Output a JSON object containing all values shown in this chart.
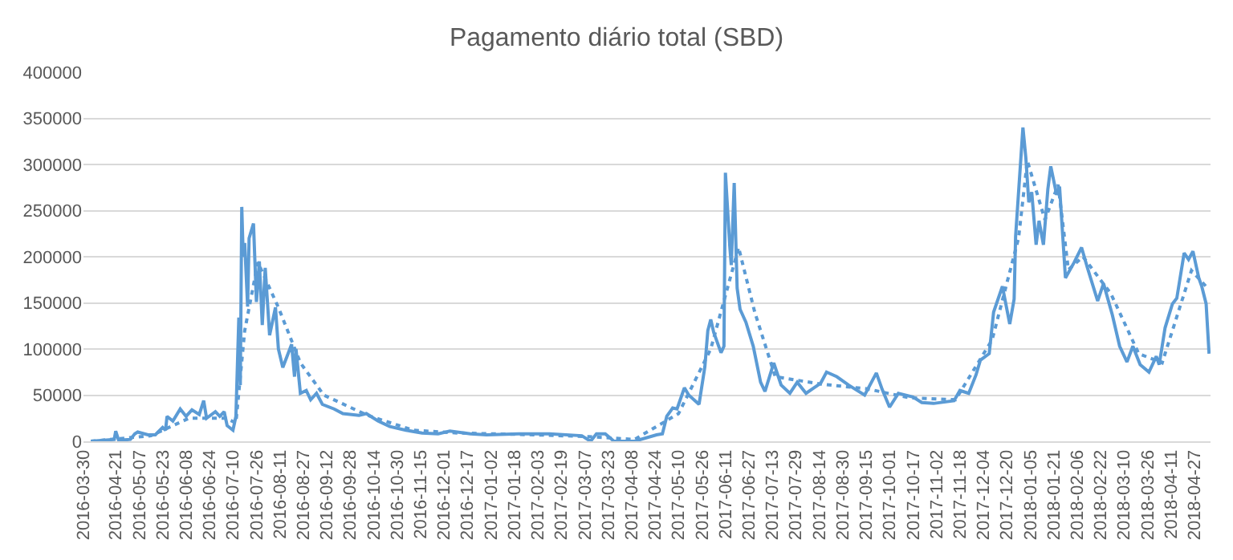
{
  "chart_data": {
    "type": "line",
    "title": "Pagamento diário total (SBD)",
    "series": [
      {
        "color": "#5b9bd5",
        "line_style": "solid",
        "x": [
          "2016-04-04",
          "2016-04-20",
          "2016-04-21",
          "2016-04-23",
          "2016-05-01",
          "2016-05-04",
          "2016-05-06",
          "2016-05-13",
          "2016-05-18",
          "2016-05-23",
          "2016-05-25",
          "2016-05-26",
          "2016-05-30",
          "2016-06-04",
          "2016-06-08",
          "2016-06-12",
          "2016-06-17",
          "2016-06-20",
          "2016-06-22",
          "2016-06-28",
          "2016-07-01",
          "2016-07-04",
          "2016-07-06",
          "2016-07-10",
          "2016-07-12",
          "2016-07-14",
          "2016-07-15",
          "2016-07-16",
          "2016-07-17",
          "2016-07-18",
          "2016-07-20",
          "2016-07-21",
          "2016-07-24",
          "2016-07-26",
          "2016-07-28",
          "2016-07-30",
          "2016-08-01",
          "2016-08-04",
          "2016-08-08",
          "2016-08-10",
          "2016-08-13",
          "2016-08-19",
          "2016-08-21",
          "2016-08-22",
          "2016-08-25",
          "2016-08-29",
          "2016-09-01",
          "2016-09-05",
          "2016-09-09",
          "2016-09-17",
          "2016-09-23",
          "2016-10-04",
          "2016-10-09",
          "2016-10-17",
          "2016-10-25",
          "2016-11-05",
          "2016-11-16",
          "2016-11-27",
          "2016-12-05",
          "2016-12-19",
          "2016-12-30",
          "2017-01-21",
          "2017-02-11",
          "2017-03-05",
          "2017-03-11",
          "2017-03-15",
          "2017-03-21",
          "2017-03-27",
          "2017-04-10",
          "2017-04-25",
          "2017-04-29",
          "2017-05-02",
          "2017-05-06",
          "2017-05-09",
          "2017-05-14",
          "2017-05-17",
          "2017-05-24",
          "2017-05-28",
          "2017-05-30",
          "2017-06-01",
          "2017-06-03",
          "2017-06-08",
          "2017-06-10",
          "2017-06-11",
          "2017-06-14",
          "2017-06-15",
          "2017-06-17",
          "2017-06-19",
          "2017-06-21",
          "2017-06-25",
          "2017-06-30",
          "2017-07-05",
          "2017-07-08",
          "2017-07-14",
          "2017-07-19",
          "2017-07-25",
          "2017-07-30",
          "2017-08-05",
          "2017-08-15",
          "2017-08-19",
          "2017-08-26",
          "2017-09-03",
          "2017-09-08",
          "2017-09-14",
          "2017-09-22",
          "2017-09-26",
          "2017-10-01",
          "2017-10-07",
          "2017-10-17",
          "2017-10-23",
          "2017-10-31",
          "2017-11-14",
          "2017-11-18",
          "2017-11-24",
          "2017-11-29",
          "2017-12-02",
          "2017-12-08",
          "2017-12-11",
          "2017-12-17",
          "2017-12-22",
          "2017-12-25",
          "2017-12-26",
          "2017-12-31",
          "2018-01-02",
          "2018-01-04",
          "2018-01-06",
          "2018-01-09",
          "2018-01-11",
          "2018-01-14",
          "2018-01-17",
          "2018-01-19",
          "2018-01-23",
          "2018-01-25",
          "2018-01-29",
          "2018-02-04",
          "2018-02-09",
          "2018-02-13",
          "2018-02-20",
          "2018-02-24",
          "2018-03-02",
          "2018-03-07",
          "2018-03-12",
          "2018-03-16",
          "2018-03-21",
          "2018-03-27",
          "2018-04-01",
          "2018-04-03",
          "2018-04-07",
          "2018-04-12",
          "2018-04-15",
          "2018-04-20",
          "2018-04-23",
          "2018-04-26",
          "2018-04-30",
          "2018-05-02",
          "2018-05-05",
          "2018-05-07"
        ],
        "values": [
          0,
          2000,
          11000,
          1000,
          2000,
          8000,
          10000,
          7000,
          7000,
          15000,
          12000,
          27000,
          22000,
          35000,
          27000,
          34000,
          29000,
          44000,
          25000,
          32000,
          27000,
          32000,
          17000,
          12000,
          27000,
          134000,
          61000,
          254000,
          200000,
          215000,
          146000,
          220000,
          236000,
          151000,
          195000,
          126000,
          188000,
          115000,
          145000,
          100000,
          80000,
          105000,
          70000,
          100000,
          52000,
          55000,
          45000,
          52000,
          40000,
          35000,
          30000,
          28000,
          30000,
          22000,
          16000,
          12000,
          9000,
          8000,
          11000,
          8000,
          7000,
          8000,
          8000,
          6000,
          0,
          8000,
          8000,
          0,
          0,
          7000,
          8000,
          27000,
          36000,
          35000,
          58000,
          50000,
          40000,
          81000,
          120000,
          132000,
          118000,
          96000,
          103000,
          291000,
          211000,
          191000,
          280000,
          166000,
          143000,
          129000,
          103000,
          64000,
          54000,
          85000,
          61000,
          52000,
          64000,
          52000,
          63000,
          75000,
          70000,
          61000,
          56000,
          50000,
          74000,
          56000,
          37000,
          52000,
          48000,
          42000,
          41000,
          44000,
          55000,
          52000,
          72000,
          88000,
          95000,
          140000,
          168000,
          127000,
          154000,
          222000,
          340000,
          307000,
          259000,
          270000,
          213000,
          239000,
          213000,
          273000,
          298000,
          267000,
          276000,
          177000,
          194000,
          210000,
          188000,
          152000,
          171000,
          137000,
          103000,
          86000,
          103000,
          83000,
          75000,
          92000,
          83000,
          123000,
          149000,
          155000,
          204000,
          197000,
          206000,
          177000,
          168000,
          149000,
          95000
        ]
      },
      {
        "color": "#5b9bd5",
        "line_style": "dotted",
        "x": [
          "2016-04-04",
          "2016-05-15",
          "2016-06-10",
          "2016-07-05",
          "2016-07-12",
          "2016-07-18",
          "2016-07-27",
          "2016-08-10",
          "2016-08-25",
          "2016-09-10",
          "2016-10-10",
          "2016-11-10",
          "2016-12-10",
          "2017-02-01",
          "2017-03-10",
          "2017-04-10",
          "2017-05-10",
          "2017-06-01",
          "2017-06-20",
          "2017-07-01",
          "2017-07-15",
          "2017-08-15",
          "2017-09-15",
          "2017-10-15",
          "2017-11-15",
          "2017-12-10",
          "2017-12-28",
          "2018-01-03",
          "2018-01-15",
          "2018-01-24",
          "2018-01-31",
          "2018-02-10",
          "2018-03-01",
          "2018-03-20",
          "2018-04-05",
          "2018-04-25",
          "2018-05-06"
        ],
        "values": [
          0,
          6000,
          25000,
          25000,
          20000,
          120000,
          194000,
          145000,
          85000,
          50000,
          28000,
          12000,
          9000,
          7000,
          5000,
          2000,
          30000,
          100000,
          210000,
          140000,
          70000,
          62000,
          57000,
          47000,
          45000,
          110000,
          220000,
          304000,
          240000,
          278000,
          186000,
          200000,
          160000,
          95000,
          85000,
          185000,
          166000
        ]
      }
    ],
    "xlim": [
      "2016-03-30",
      "2018-05-08"
    ],
    "xticks": [
      "2016-03-30",
      "2016-04-21",
      "2016-05-07",
      "2016-05-23",
      "2016-06-08",
      "2016-06-24",
      "2016-07-10",
      "2016-07-26",
      "2016-08-11",
      "2016-08-27",
      "2016-09-12",
      "2016-09-28",
      "2016-10-14",
      "2016-10-30",
      "2016-11-15",
      "2016-12-01",
      "2016-12-17",
      "2017-01-02",
      "2017-01-18",
      "2017-02-03",
      "2017-02-19",
      "2017-03-07",
      "2017-03-23",
      "2017-04-08",
      "2017-04-24",
      "2017-05-10",
      "2017-05-26",
      "2017-06-11",
      "2017-06-27",
      "2017-07-13",
      "2017-07-29",
      "2017-08-14",
      "2017-08-30",
      "2017-09-15",
      "2017-10-01",
      "2017-10-17",
      "2017-11-02",
      "2017-11-18",
      "2017-12-04",
      "2017-12-20",
      "2018-01-05",
      "2018-01-21",
      "2018-02-06",
      "2018-02-22",
      "2018-03-10",
      "2018-03-26",
      "2018-04-11",
      "2018-04-27"
    ],
    "ylim": [
      0,
      400000
    ],
    "yticks": [
      0,
      50000,
      100000,
      150000,
      200000,
      250000,
      300000,
      350000,
      400000
    ],
    "grid": "y",
    "marker": "none"
  }
}
